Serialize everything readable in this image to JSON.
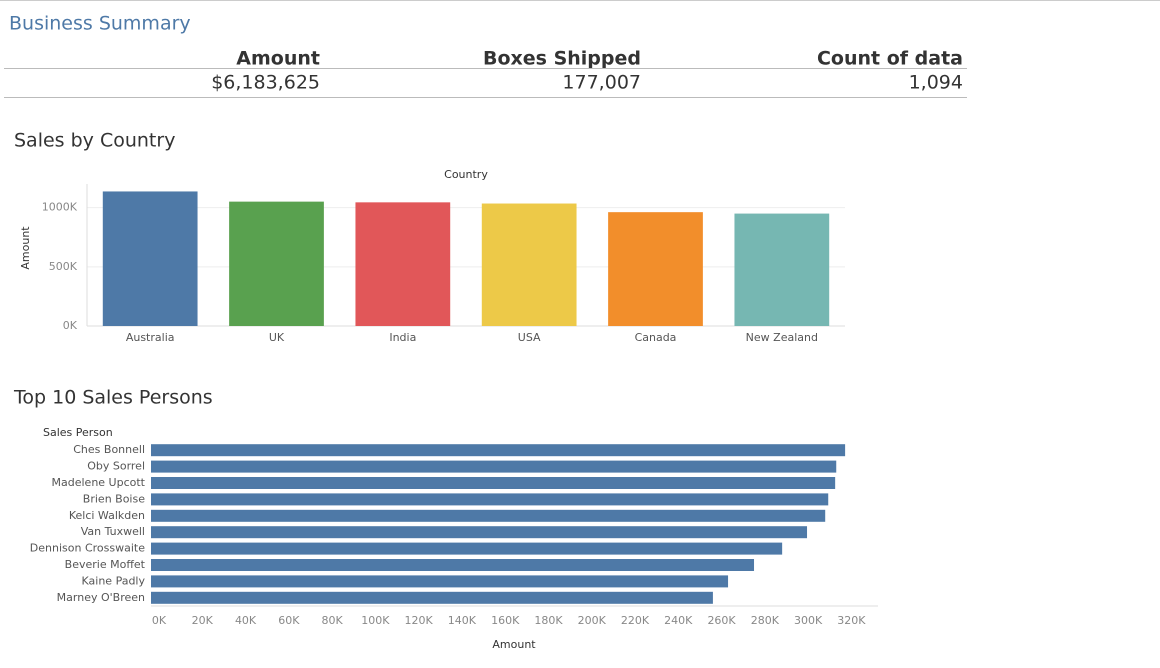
{
  "header": {
    "title": "Business Summary"
  },
  "summary": {
    "columns": [
      "Amount",
      "Boxes Shipped",
      "Count of data"
    ],
    "values": [
      "$6,183,625",
      "177,007",
      "1,094"
    ]
  },
  "chart_data": [
    {
      "type": "bar",
      "title": "Sales by Country",
      "x_label": "Country",
      "y_label": "Amount",
      "categories": [
        "Australia",
        "UK",
        "India",
        "USA",
        "Canada",
        "New Zealand"
      ],
      "values": [
        1137000,
        1051000,
        1045000,
        1035000,
        962000,
        950000
      ],
      "colors": [
        "#4e79a7",
        "#59a14f",
        "#e15759",
        "#edc948",
        "#f28e2b",
        "#76b7b2"
      ],
      "ylim": [
        0,
        1200000
      ],
      "yticks": [
        {
          "value": 0,
          "label": "0K"
        },
        {
          "value": 500000,
          "label": "500K"
        },
        {
          "value": 1000000,
          "label": "1000K"
        }
      ],
      "grid": true
    },
    {
      "type": "barh",
      "title": "Top 10 Sales Persons",
      "x_label": "Amount",
      "y_label": "Sales Person",
      "categories": [
        "Ches Bonnell",
        "Oby Sorrel",
        "Madelene Upcott",
        "Brien Boise",
        "Kelci Walkden",
        "Van Tuxwell",
        "Dennison Crosswaite",
        "Beverie Moffet",
        "Kaine Padly",
        "Marney O'Breen"
      ],
      "values": [
        320800,
        316700,
        316200,
        313000,
        311600,
        303200,
        291700,
        278700,
        266700,
        259700
      ],
      "color": "#4e79a7",
      "xlim": [
        0,
        336000
      ],
      "xticks": [
        {
          "value": 0,
          "label": "0K"
        },
        {
          "value": 20000,
          "label": "20K"
        },
        {
          "value": 40000,
          "label": "40K"
        },
        {
          "value": 60000,
          "label": "60K"
        },
        {
          "value": 80000,
          "label": "80K"
        },
        {
          "value": 100000,
          "label": "100K"
        },
        {
          "value": 120000,
          "label": "120K"
        },
        {
          "value": 140000,
          "label": "140K"
        },
        {
          "value": 160000,
          "label": "160K"
        },
        {
          "value": 180000,
          "label": "180K"
        },
        {
          "value": 200000,
          "label": "200K"
        },
        {
          "value": 220000,
          "label": "220K"
        },
        {
          "value": 240000,
          "label": "240K"
        },
        {
          "value": 260000,
          "label": "260K"
        },
        {
          "value": 280000,
          "label": "280K"
        },
        {
          "value": 300000,
          "label": "300K"
        },
        {
          "value": 320000,
          "label": "320K"
        }
      ],
      "grid": false
    }
  ]
}
